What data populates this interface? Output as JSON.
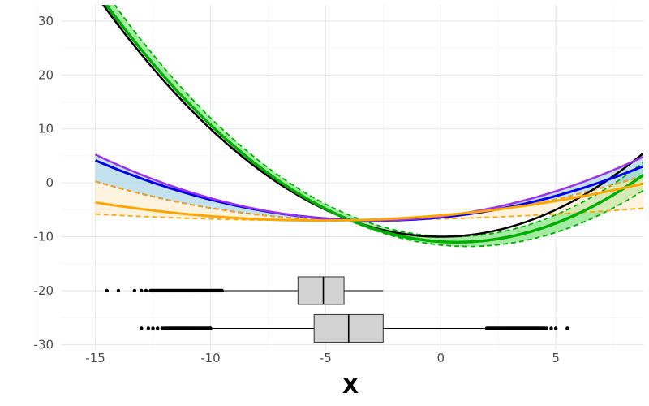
{
  "chart_data": {
    "type": "line",
    "xlabel": "X",
    "ylabel": "",
    "xlim": [
      -16.5,
      8.8
    ],
    "ylim": [
      -31,
      33
    ],
    "x_ticks": [
      -15,
      -10,
      -5,
      0,
      5
    ],
    "x_tick_labels": [
      "-15",
      "-10",
      "-5",
      "0",
      "5"
    ],
    "y_ticks": [
      -30,
      -20,
      -10,
      0,
      10,
      20,
      30
    ],
    "y_tick_labels": [
      "-30",
      "-20",
      "-10",
      "0",
      "10",
      "20",
      "30"
    ],
    "grid": true,
    "legend": "none",
    "x_range": [
      -15,
      8.8
    ],
    "series": [
      {
        "color": "#000000",
        "line": "solid",
        "width": 2.5,
        "a": 0.2,
        "h": 0,
        "k": -10
      },
      {
        "color": "#00b000",
        "line": "solid",
        "width": 3.5,
        "a": 0.19,
        "h": 0.7,
        "k": -11,
        "band": {
          "fill": "#86e486",
          "opacity": 0.75,
          "upper": {
            "a": 0.2,
            "h": 0.5,
            "k": -10
          },
          "lower": {
            "a": 0.18,
            "h": 1.2,
            "k": -11.8
          }
        }
      },
      {
        "color": "#0000ee",
        "line": "solid",
        "width": 3,
        "a": 0.075,
        "h": -2.8,
        "k": -7,
        "band": {
          "fill": "#a9d5e6",
          "opacity": 0.7,
          "upper": {
            "a": 0.085,
            "h": -3,
            "k": -7
          },
          "lower": {
            "a": 0.055,
            "h": -3.5,
            "k": -7
          }
        }
      },
      {
        "color": "#9b30f0",
        "line": "solid",
        "width": 2.5,
        "a": 0.085,
        "h": -3,
        "k": -7
      },
      {
        "color": "#ffa500",
        "line": "solid",
        "width": 3,
        "a": 0.035,
        "h": -5.2,
        "k": -7,
        "band": {
          "fill": "#fde9c4",
          "opacity": 0.55,
          "upper": {
            "a": 0.055,
            "h": -3.5,
            "k": -7
          },
          "lower": {
            "a": 0.012,
            "h": -5,
            "k": -7
          }
        }
      }
    ],
    "boxplots": [
      {
        "y": -20,
        "whisker_low": -12.7,
        "q1": -6.2,
        "median": -5.1,
        "q3": -4.2,
        "whisker_high": -2.5,
        "outlier_dense": [
          -12.6,
          -9.5
        ],
        "outlier_sparse": [
          -14.5,
          -14.0,
          -13.3,
          -13.0,
          -12.8
        ]
      },
      {
        "y": -27,
        "whisker_low": -10,
        "q1": -5.5,
        "median": -4,
        "q3": -2.5,
        "whisker_high": 2,
        "outlier_dense_left": [
          -12.0,
          -10.0
        ],
        "outlier_sparse_left": [
          -13.0,
          -12.7,
          -12.5,
          -12.3,
          -12.1
        ],
        "outlier_dense_right": [
          2.0,
          4.5
        ],
        "outlier_sparse_right": [
          4.6,
          4.8,
          5.0,
          5.5
        ]
      }
    ]
  }
}
